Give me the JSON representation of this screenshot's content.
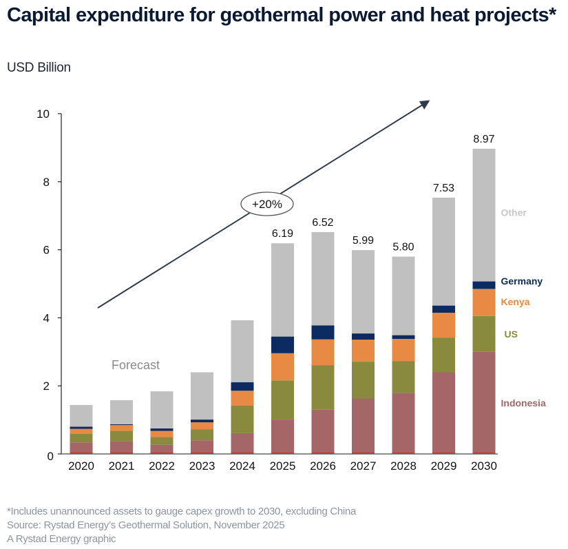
{
  "header": {
    "title": "Capital expenditure for geothermal power and heat projects*",
    "subtitle": "USD Billion"
  },
  "footer": {
    "note": "*Includes unannounced assets to gauge capex growth to 2030, excluding China",
    "source": "Source: Rystad Energy’s Geothermal Solution, November 2025",
    "credit": "A Rystad Energy graphic"
  },
  "chart_data": {
    "type": "bar",
    "stacked": true,
    "title": "Capital expenditure for geothermal power and heat projects*",
    "ylabel": "USD Billion",
    "xlabel": "",
    "ylim": [
      0,
      10
    ],
    "yticks": [
      0,
      2,
      4,
      6,
      8,
      10
    ],
    "grid": false,
    "legend_placement": "right (inline labels beside 2030 bar)",
    "categories": [
      "2020",
      "2021",
      "2022",
      "2023",
      "2024",
      "2025",
      "2026",
      "2027",
      "2028",
      "2029",
      "2030"
    ],
    "series": [
      {
        "name": "Indonesia",
        "color": "#a56667",
        "values": [
          0.34,
          0.38,
          0.27,
          0.4,
          0.61,
          1.01,
          1.3,
          1.63,
          1.79,
          2.4,
          3.0
        ]
      },
      {
        "name": "US",
        "color": "#8a8a3e",
        "values": [
          0.26,
          0.3,
          0.23,
          0.32,
          0.82,
          1.15,
          1.31,
          1.08,
          0.94,
          1.02,
          1.05
        ]
      },
      {
        "name": "Kenya",
        "color": "#e88a43",
        "values": [
          0.14,
          0.17,
          0.18,
          0.21,
          0.43,
          0.8,
          0.76,
          0.65,
          0.65,
          0.73,
          0.8
        ]
      },
      {
        "name": "Germany",
        "color": "#0d2b63",
        "values": [
          0.06,
          0.02,
          0.07,
          0.08,
          0.25,
          0.49,
          0.41,
          0.18,
          0.11,
          0.21,
          0.22
        ]
      },
      {
        "name": "Other",
        "color": "#c0c0c0",
        "values": [
          0.64,
          0.71,
          1.09,
          1.39,
          1.82,
          2.74,
          2.74,
          2.45,
          2.31,
          3.17,
          3.9
        ]
      }
    ],
    "totals": [
      1.44,
      1.58,
      1.84,
      2.4,
      3.93,
      6.19,
      6.52,
      5.99,
      5.8,
      7.53,
      8.97
    ],
    "total_labels": [
      {
        "category": "2025",
        "text": "6.19"
      },
      {
        "category": "2026",
        "text": "6.52"
      },
      {
        "category": "2027",
        "text": "5.99"
      },
      {
        "category": "2028",
        "text": "5.80"
      },
      {
        "category": "2029",
        "text": "7.53"
      },
      {
        "category": "2030",
        "text": "8.97"
      }
    ],
    "annotations": {
      "forecast_label": "Forecast",
      "growth_label": "+20%",
      "growth_arrow": {
        "from": {
          "category": "2020.4",
          "value": 4.3
        },
        "to": {
          "category": "2028.7",
          "value": 10.4
        }
      }
    },
    "colors": {
      "axis": "#222222",
      "base_accent": "#c0392b",
      "arrow": "#2e3a4c",
      "forecast_text": "#8a8a8a",
      "other_label": "#c8c8c8"
    }
  }
}
